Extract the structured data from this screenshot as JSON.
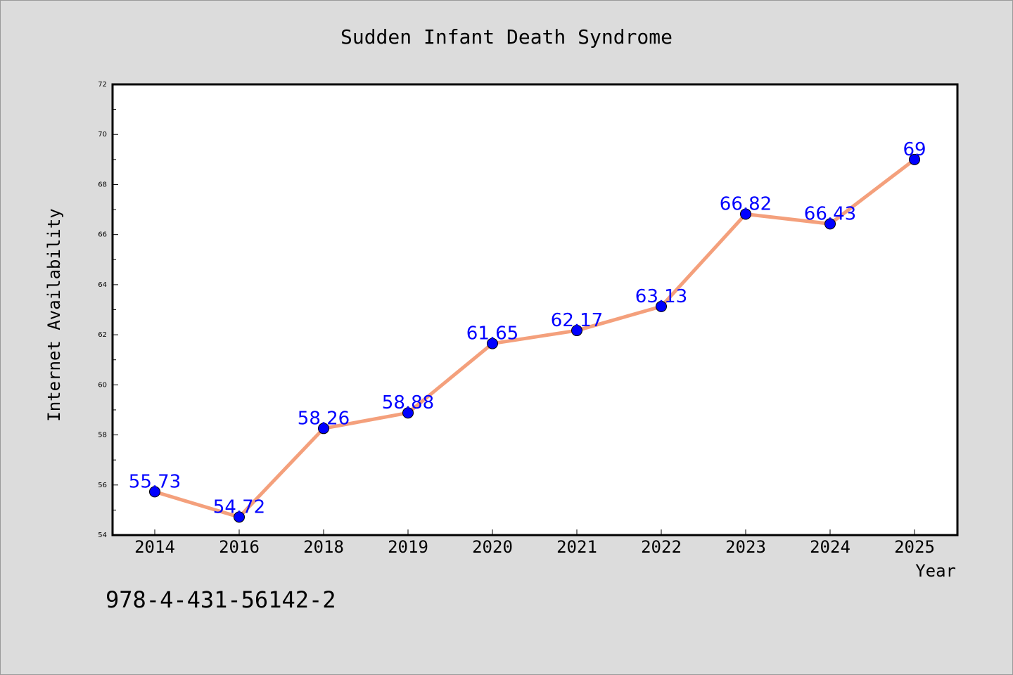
{
  "chart_data": {
    "type": "line",
    "title": "Sudden Infant Death Syndrome",
    "xlabel": "Year",
    "ylabel": "Internet Availability",
    "categories": [
      "2014",
      "2016",
      "2018",
      "2019",
      "2020",
      "2021",
      "2022",
      "2023",
      "2024",
      "2025"
    ],
    "series": [
      {
        "values": [
          55.73,
          54.72,
          58.26,
          58.88,
          61.65,
          62.17,
          63.13,
          66.82,
          66.43,
          69
        ],
        "line_color": "#f4a07c",
        "marker_color": "#0000ff"
      }
    ],
    "data_labels": [
      "55.73",
      "54.72",
      "58.26",
      "58.88",
      "61.65",
      "62.17",
      "63.13",
      "66.82",
      "66.43",
      "69"
    ],
    "ylim": [
      54,
      72
    ],
    "y_ticks": [
      54,
      56,
      58,
      60,
      62,
      64,
      66,
      68,
      70,
      72
    ],
    "grid": false,
    "legend": "none"
  },
  "annotation": {
    "isbn": "978-4-431-56142-2"
  },
  "colors": {
    "background": "#dcdcdc",
    "plot_background": "#ffffff",
    "line": "#f4a07c",
    "marker": "#0000ff",
    "data_label": "#0000ff"
  }
}
